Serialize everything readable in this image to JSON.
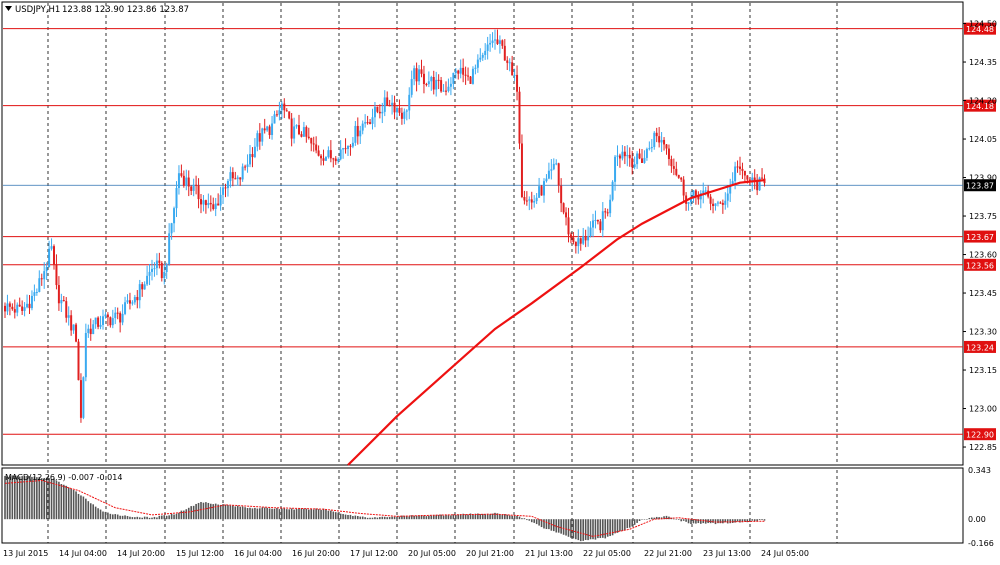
{
  "header": {
    "symbol_label": "USDJPY,H1",
    "ohlc_label": "123.88 123.90 123.86 123.87"
  },
  "indicator": {
    "label": "MACD(12,26,9) -0.007 -0.014",
    "axis_ticks": [
      "0.343",
      "0.00",
      "-0.166"
    ]
  },
  "colors": {
    "bull": "#3aaaf0",
    "bear": "#e02020",
    "level_line": "#e01010",
    "price_line": "#2a6fb0",
    "ma_line": "#ee1111",
    "histogram": "#555555",
    "signal_line": "#ee1111",
    "grid_vertical": "#000000",
    "background": "#ffffff"
  },
  "chart_data": [
    {
      "type": "candlestick",
      "title": "USDJPY,H1",
      "timeframe": "H1",
      "last_ohlc": {
        "open": 123.88,
        "high": 123.9,
        "low": 123.86,
        "close": 123.87
      },
      "ylim": [
        122.78,
        124.58
      ],
      "y_ticks": [
        "124.50",
        "124.35",
        "124.20",
        "124.05",
        "123.90",
        "123.75",
        "123.60",
        "123.45",
        "123.30",
        "123.15",
        "123.00",
        "122.85"
      ],
      "x_tick_labels": [
        "13 Jul 2015",
        "14 Jul 04:00",
        "14 Jul 20:00",
        "15 Jul 12:00",
        "16 Jul 04:00",
        "16 Jul 20:00",
        "17 Jul 12:00",
        "20 Jul 05:00",
        "20 Jul 21:00",
        "21 Jul 13:00",
        "22 Jul 05:00",
        "22 Jul 21:00",
        "23 Jul 13:00",
        "24 Jul 05:00"
      ],
      "levels": [
        {
          "value": 124.48,
          "label": "124.48"
        },
        {
          "value": 124.18,
          "label": "124.18"
        },
        {
          "value": 123.67,
          "label": "123.67"
        },
        {
          "value": 123.56,
          "label": "123.56"
        },
        {
          "value": 123.24,
          "label": "123.24"
        },
        {
          "value": 122.9,
          "label": "122.90"
        }
      ],
      "current_price": {
        "value": 123.87,
        "label": "123.87"
      },
      "price_path": [
        [
          0,
          123.4
        ],
        [
          8,
          123.38
        ],
        [
          14,
          123.46
        ],
        [
          20,
          123.62
        ],
        [
          22,
          123.46
        ],
        [
          30,
          123.28
        ],
        [
          32,
          122.96
        ],
        [
          34,
          123.3
        ],
        [
          40,
          123.34
        ],
        [
          48,
          123.36
        ],
        [
          56,
          123.46
        ],
        [
          62,
          123.56
        ],
        [
          66,
          123.52
        ],
        [
          72,
          123.92
        ],
        [
          80,
          123.83
        ],
        [
          86,
          123.77
        ],
        [
          92,
          123.9
        ],
        [
          96,
          123.88
        ],
        [
          104,
          124.05
        ],
        [
          110,
          124.1
        ],
        [
          114,
          124.18
        ],
        [
          118,
          124.08
        ],
        [
          122,
          124.08
        ],
        [
          128,
          124.0
        ],
        [
          134,
          123.98
        ],
        [
          140,
          124.02
        ],
        [
          146,
          124.1
        ],
        [
          152,
          124.15
        ],
        [
          158,
          124.2
        ],
        [
          164,
          124.14
        ],
        [
          168,
          124.3
        ],
        [
          174,
          124.28
        ],
        [
          180,
          124.24
        ],
        [
          186,
          124.32
        ],
        [
          190,
          124.28
        ],
        [
          196,
          124.36
        ],
        [
          200,
          124.44
        ],
        [
          204,
          124.4
        ],
        [
          206,
          124.36
        ],
        [
          208,
          124.29
        ],
        [
          210,
          124.26
        ],
        [
          212,
          123.85
        ],
        [
          216,
          123.8
        ],
        [
          222,
          123.88
        ],
        [
          226,
          123.95
        ],
        [
          228,
          123.8
        ],
        [
          232,
          123.66
        ],
        [
          236,
          123.64
        ],
        [
          240,
          123.7
        ],
        [
          244,
          123.72
        ],
        [
          248,
          123.8
        ],
        [
          250,
          124.0
        ],
        [
          254,
          124.0
        ],
        [
          258,
          123.96
        ],
        [
          262,
          123.98
        ],
        [
          266,
          124.06
        ],
        [
          270,
          124.04
        ],
        [
          276,
          123.9
        ],
        [
          280,
          123.8
        ],
        [
          284,
          123.84
        ],
        [
          288,
          123.82
        ],
        [
          292,
          123.78
        ],
        [
          296,
          123.84
        ],
        [
          300,
          123.96
        ],
        [
          302,
          123.9
        ],
        [
          306,
          123.88
        ],
        [
          310,
          123.87
        ]
      ],
      "moving_average": [
        [
          140,
          122.78
        ],
        [
          160,
          122.97
        ],
        [
          180,
          123.14
        ],
        [
          200,
          123.31
        ],
        [
          215,
          123.41
        ],
        [
          235,
          123.55
        ],
        [
          250,
          123.66
        ],
        [
          260,
          123.72
        ],
        [
          270,
          123.77
        ],
        [
          280,
          123.82
        ],
        [
          290,
          123.85
        ],
        [
          300,
          123.88
        ],
        [
          310,
          123.89
        ]
      ],
      "bar_count": 311
    },
    {
      "type": "macd",
      "title": "MACD(12,26,9) -0.007 -0.014",
      "params": [
        12,
        26,
        9
      ],
      "value": -0.007,
      "signal_value": -0.014,
      "ylim": [
        -0.166,
        0.343
      ],
      "histogram_path": [
        [
          0,
          0.3
        ],
        [
          10,
          0.3
        ],
        [
          20,
          0.28
        ],
        [
          30,
          0.18
        ],
        [
          40,
          0.05
        ],
        [
          50,
          0.02
        ],
        [
          60,
          0.01
        ],
        [
          70,
          0.04
        ],
        [
          80,
          0.12
        ],
        [
          90,
          0.1
        ],
        [
          100,
          0.08
        ],
        [
          120,
          0.07
        ],
        [
          130,
          0.07
        ],
        [
          140,
          0.03
        ],
        [
          150,
          0.01
        ],
        [
          160,
          0.02
        ],
        [
          180,
          0.03
        ],
        [
          200,
          0.04
        ],
        [
          210,
          0.02
        ],
        [
          220,
          -0.06
        ],
        [
          235,
          -0.15
        ],
        [
          245,
          -0.13
        ],
        [
          255,
          -0.06
        ],
        [
          260,
          0.0
        ],
        [
          270,
          0.02
        ],
        [
          280,
          -0.03
        ],
        [
          290,
          -0.03
        ],
        [
          300,
          -0.02
        ],
        [
          310,
          -0.007
        ]
      ],
      "signal_path": [
        [
          0,
          0.25
        ],
        [
          15,
          0.27
        ],
        [
          30,
          0.2
        ],
        [
          45,
          0.08
        ],
        [
          60,
          0.03
        ],
        [
          75,
          0.05
        ],
        [
          90,
          0.1
        ],
        [
          110,
          0.08
        ],
        [
          130,
          0.07
        ],
        [
          145,
          0.04
        ],
        [
          160,
          0.02
        ],
        [
          180,
          0.03
        ],
        [
          200,
          0.035
        ],
        [
          215,
          0.02
        ],
        [
          225,
          -0.05
        ],
        [
          240,
          -0.12
        ],
        [
          255,
          -0.07
        ],
        [
          265,
          0.0
        ],
        [
          275,
          0.01
        ],
        [
          290,
          -0.02
        ],
        [
          310,
          -0.014
        ]
      ]
    }
  ]
}
